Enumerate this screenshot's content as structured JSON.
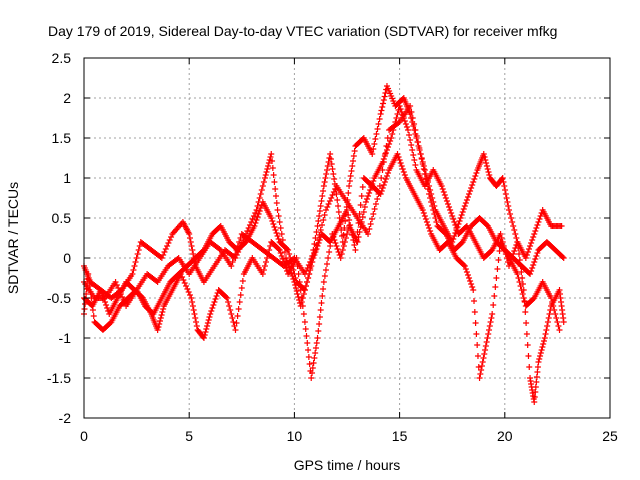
{
  "chart_data": {
    "type": "scatter",
    "title": "Day 179 of 2019, Sidereal Day-to-day VTEC variation (SDTVAR) for receiver mfkg",
    "xlabel": "GPS time / hours",
    "ylabel": "SDTVAR / TECUs",
    "xlim": [
      0,
      25
    ],
    "ylim": [
      -2,
      2.5
    ],
    "xticks": [
      0,
      5,
      10,
      15,
      20,
      25
    ],
    "xtick_labels": [
      "0",
      "5",
      "10",
      "15",
      "20",
      "25"
    ],
    "yticks": [
      -2,
      -1.5,
      -1,
      -0.5,
      0,
      0.5,
      1,
      1.5,
      2,
      2.5
    ],
    "ytick_labels": [
      "-2",
      "-1.5",
      "-1",
      "-0.5",
      "0",
      "0.5",
      "1",
      "1.5",
      "2",
      "2.5"
    ],
    "grid": true,
    "marker": "+",
    "color": "#ff0000",
    "series": [
      {
        "name": "track-1",
        "points": [
          [
            0.0,
            -0.1
          ],
          [
            0.3,
            -0.3
          ],
          [
            0.8,
            -0.4
          ],
          [
            1.3,
            -0.5
          ],
          [
            1.8,
            -0.4
          ],
          [
            2.3,
            -0.2
          ],
          [
            2.7,
            0.2
          ],
          [
            3.2,
            0.1
          ],
          [
            3.7,
            0.0
          ],
          [
            4.2,
            0.3
          ],
          [
            4.7,
            0.45
          ],
          [
            5.0,
            0.3
          ],
          [
            5.3,
            -0.1
          ],
          [
            5.7,
            -0.3
          ],
          [
            6.2,
            -0.1
          ],
          [
            6.7,
            0.1
          ],
          [
            7.2,
            0.0
          ],
          [
            7.7,
            0.3
          ],
          [
            8.2,
            0.6
          ],
          [
            8.6,
            1.0
          ],
          [
            8.9,
            1.3
          ],
          [
            9.2,
            0.6
          ],
          [
            9.6,
            0.0
          ],
          [
            10.0,
            -0.3
          ],
          [
            10.3,
            -0.6
          ],
          [
            10.7,
            -0.2
          ],
          [
            11.1,
            0.4
          ],
          [
            11.4,
            0.9
          ],
          [
            11.7,
            1.3
          ],
          [
            12.0,
            0.8
          ],
          [
            12.3,
            0.2
          ],
          [
            12.6,
            0.9
          ],
          [
            12.9,
            1.4
          ],
          [
            13.3,
            1.5
          ],
          [
            13.7,
            1.3
          ],
          [
            14.1,
            1.8
          ],
          [
            14.4,
            2.15
          ],
          [
            14.8,
            1.9
          ],
          [
            15.2,
            2.0
          ],
          [
            15.5,
            1.8
          ],
          [
            15.9,
            1.4
          ],
          [
            16.3,
            1.0
          ],
          [
            16.7,
            0.6
          ],
          [
            17.1,
            0.4
          ],
          [
            17.5,
            0.2
          ],
          [
            17.9,
            0.5
          ],
          [
            18.3,
            0.8
          ],
          [
            18.7,
            1.1
          ],
          [
            19.0,
            1.3
          ],
          [
            19.3,
            1.0
          ],
          [
            19.6,
            0.9
          ],
          [
            19.9,
            1.0
          ],
          [
            20.2,
            0.6
          ],
          [
            20.6,
            0.2
          ],
          [
            21.0,
            0.0
          ],
          [
            21.4,
            0.3
          ],
          [
            21.8,
            0.6
          ],
          [
            22.2,
            0.4
          ],
          [
            22.7,
            0.4
          ]
        ]
      },
      {
        "name": "track-2",
        "points": [
          [
            0.0,
            -0.5
          ],
          [
            0.4,
            -0.6
          ],
          [
            0.8,
            -0.4
          ],
          [
            1.2,
            -0.7
          ],
          [
            1.6,
            -0.5
          ],
          [
            2.0,
            -0.3
          ],
          [
            2.4,
            -0.4
          ],
          [
            2.8,
            -0.5
          ],
          [
            3.2,
            -0.7
          ],
          [
            3.5,
            -0.9
          ],
          [
            3.8,
            -0.6
          ],
          [
            4.2,
            -0.4
          ],
          [
            4.6,
            -0.2
          ],
          [
            5.1,
            -0.5
          ],
          [
            5.4,
            -0.9
          ],
          [
            5.7,
            -1.0
          ],
          [
            6.0,
            -0.7
          ],
          [
            6.4,
            -0.4
          ],
          [
            6.8,
            -0.5
          ],
          [
            7.2,
            -0.9
          ],
          [
            7.6,
            -0.2
          ],
          [
            8.0,
            0.0
          ],
          [
            8.5,
            -0.2
          ],
          [
            8.9,
            0.2
          ],
          [
            9.3,
            0.1
          ],
          [
            9.7,
            -0.2
          ],
          [
            10.1,
            0.0
          ],
          [
            10.5,
            -0.8
          ],
          [
            10.8,
            -1.5
          ],
          [
            11.1,
            -1.0
          ],
          [
            11.4,
            -0.3
          ],
          [
            11.8,
            0.3
          ],
          [
            12.2,
            0.0
          ],
          [
            12.6,
            0.4
          ],
          [
            13.0,
            0.2
          ],
          [
            13.4,
            0.7
          ],
          [
            13.8,
            1.0
          ],
          [
            14.2,
            1.2
          ],
          [
            14.6,
            1.5
          ],
          [
            15.0,
            1.9
          ],
          [
            15.4,
            1.6
          ],
          [
            15.8,
            1.1
          ],
          [
            16.2,
            0.9
          ],
          [
            16.6,
            1.1
          ],
          [
            17.0,
            0.9
          ],
          [
            17.4,
            0.6
          ],
          [
            17.8,
            0.3
          ],
          [
            18.2,
            0.4
          ],
          [
            18.6,
            0.2
          ],
          [
            19.0,
            0.0
          ],
          [
            19.4,
            0.1
          ],
          [
            19.8,
            0.3
          ],
          [
            20.2,
            -0.1
          ],
          [
            20.6,
            0.2
          ],
          [
            20.9,
            -0.4
          ],
          [
            21.2,
            -1.5
          ],
          [
            21.4,
            -1.8
          ],
          [
            21.6,
            -1.3
          ],
          [
            21.9,
            -1.0
          ],
          [
            22.2,
            -0.6
          ],
          [
            22.6,
            -0.4
          ],
          [
            22.8,
            -0.8
          ]
        ]
      },
      {
        "name": "track-3",
        "points": [
          [
            0.0,
            -0.7
          ],
          [
            0.2,
            -0.2
          ],
          [
            0.5,
            -0.8
          ],
          [
            0.9,
            -0.9
          ],
          [
            1.3,
            -0.8
          ],
          [
            1.7,
            -0.6
          ],
          [
            2.1,
            -0.5
          ],
          [
            2.5,
            -0.4
          ],
          [
            2.9,
            -0.6
          ],
          [
            3.3,
            -0.7
          ],
          [
            3.7,
            -0.5
          ],
          [
            4.1,
            -0.3
          ],
          [
            4.5,
            -0.2
          ],
          [
            4.9,
            -0.1
          ],
          [
            5.3,
            0.0
          ],
          [
            5.7,
            0.1
          ],
          [
            6.1,
            0.3
          ],
          [
            6.5,
            0.4
          ],
          [
            6.9,
            0.2
          ],
          [
            7.3,
            0.1
          ],
          [
            7.7,
            0.2
          ],
          [
            8.1,
            0.4
          ],
          [
            8.5,
            0.7
          ],
          [
            8.9,
            0.5
          ],
          [
            9.3,
            0.2
          ],
          [
            9.7,
            0.1
          ],
          [
            10.1,
            -0.3
          ],
          [
            10.5,
            -0.4
          ],
          [
            10.9,
            0.0
          ],
          [
            11.3,
            0.3
          ],
          [
            11.7,
            0.2
          ],
          [
            12.1,
            0.4
          ],
          [
            12.5,
            0.6
          ],
          [
            12.9,
            0.1
          ],
          [
            13.3,
            1.0
          ],
          [
            13.7,
            0.9
          ],
          [
            14.1,
            0.8
          ],
          [
            14.5,
            1.1
          ],
          [
            14.9,
            1.3
          ],
          [
            15.3,
            1.0
          ],
          [
            15.7,
            0.8
          ],
          [
            16.1,
            0.6
          ],
          [
            16.5,
            0.3
          ],
          [
            16.9,
            0.1
          ],
          [
            17.3,
            0.2
          ],
          [
            17.7,
            0.0
          ],
          [
            18.1,
            -0.1
          ],
          [
            18.5,
            -0.4
          ],
          [
            18.8,
            -1.5
          ],
          [
            19.1,
            -1.1
          ],
          [
            19.4,
            -0.7
          ],
          [
            19.8,
            0.2
          ],
          [
            20.2,
            0.0
          ],
          [
            20.6,
            -0.2
          ],
          [
            21.0,
            -0.6
          ],
          [
            21.4,
            -0.5
          ],
          [
            21.8,
            -0.3
          ],
          [
            22.2,
            -0.5
          ],
          [
            22.6,
            -0.9
          ]
        ]
      },
      {
        "name": "track-4",
        "points": [
          [
            0.0,
            -0.3
          ],
          [
            0.5,
            -0.5
          ],
          [
            1.0,
            -0.5
          ],
          [
            1.5,
            -0.3
          ],
          [
            2.0,
            -0.6
          ],
          [
            2.5,
            -0.4
          ],
          [
            3.0,
            -0.2
          ],
          [
            3.5,
            -0.3
          ],
          [
            4.0,
            -0.1
          ],
          [
            4.5,
            0.0
          ],
          [
            5.0,
            -0.2
          ],
          [
            5.5,
            0.0
          ],
          [
            6.0,
            0.2
          ],
          [
            6.5,
            0.1
          ],
          [
            7.0,
            -0.1
          ],
          [
            7.5,
            0.3
          ],
          [
            8.0,
            0.2
          ],
          [
            8.5,
            0.1
          ],
          [
            9.0,
            0.0
          ],
          [
            9.5,
            -0.1
          ],
          [
            10.0,
            0.0
          ],
          [
            10.5,
            -0.2
          ],
          [
            11.0,
            0.1
          ],
          [
            11.5,
            0.6
          ],
          [
            12.0,
            0.9
          ],
          [
            12.5,
            0.7
          ],
          [
            13.0,
            0.5
          ],
          [
            13.5,
            0.3
          ],
          [
            14.0,
            0.8
          ],
          [
            14.5,
            1.6
          ],
          [
            15.0,
            1.7
          ],
          [
            15.5,
            1.9
          ],
          [
            16.0,
            1.3
          ],
          [
            16.4,
            0.8
          ],
          [
            16.8,
            0.4
          ],
          [
            17.2,
            0.3
          ],
          [
            17.6,
            0.1
          ],
          [
            18.0,
            0.2
          ],
          [
            18.4,
            0.4
          ],
          [
            18.8,
            0.5
          ],
          [
            19.2,
            0.4
          ],
          [
            19.6,
            0.2
          ],
          [
            20.0,
            0.1
          ],
          [
            20.4,
            0.0
          ],
          [
            20.8,
            -0.1
          ],
          [
            21.2,
            -0.2
          ],
          [
            21.6,
            0.1
          ],
          [
            22.0,
            0.2
          ],
          [
            22.4,
            0.1
          ],
          [
            22.8,
            0.0
          ]
        ]
      }
    ]
  }
}
